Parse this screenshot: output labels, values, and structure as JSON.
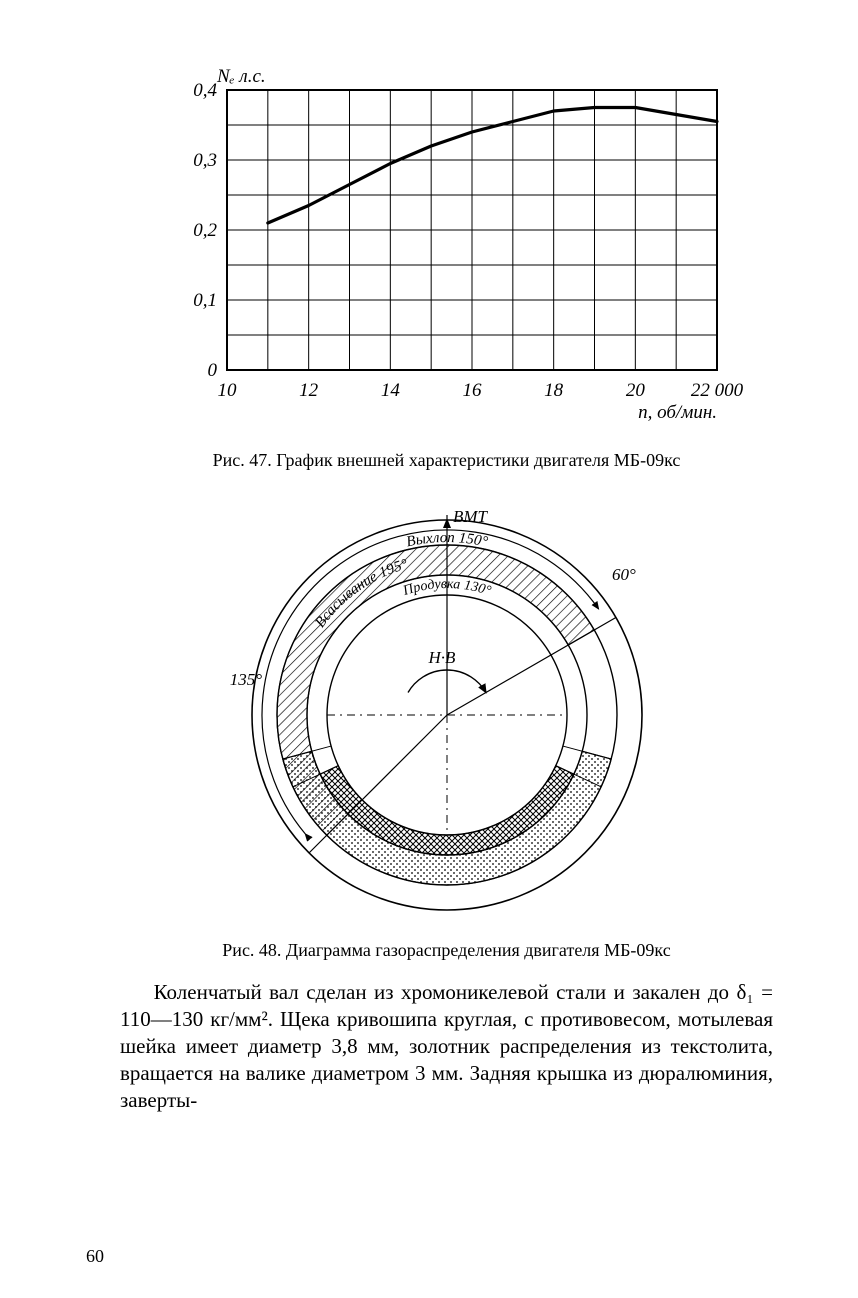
{
  "chart47": {
    "type": "line",
    "y_axis_label": "Nₑ л.с.",
    "x_axis_label": "n, об/мин.",
    "y_ticks": [
      "0",
      "0,1",
      "0,2",
      "0,3",
      "0,4"
    ],
    "x_ticks": [
      "10",
      "12",
      "14",
      "16",
      "18",
      "20",
      "22 000"
    ],
    "xlim": [
      10,
      22
    ],
    "ylim": [
      0,
      0.4
    ],
    "curve": [
      [
        11,
        0.21
      ],
      [
        12,
        0.235
      ],
      [
        13,
        0.265
      ],
      [
        14,
        0.295
      ],
      [
        15,
        0.32
      ],
      [
        16,
        0.34
      ],
      [
        17,
        0.355
      ],
      [
        18,
        0.37
      ],
      [
        19,
        0.375
      ],
      [
        20,
        0.375
      ],
      [
        21,
        0.365
      ],
      [
        22,
        0.355
      ]
    ],
    "axis_color": "#000000",
    "grid_color": "#000000",
    "curve_color": "#000000",
    "curve_width": 3.2,
    "grid_width": 1,
    "axis_width": 2,
    "tick_fontsize": 19,
    "label_fontsize": 19
  },
  "caption47": "Рис. 47. График внешней характеристики двигателя МБ-09кс",
  "diagram48": {
    "type": "timing-circle",
    "top_label": "ВМТ",
    "center_label": "Н·В",
    "outer_left_angle_label": "135°",
    "outer_right_angle_label": "60°",
    "arc_labels": {
      "intake": "Всасывание 195°",
      "purge": "Продувка 130°",
      "exhaust": "Выхлоп 150°"
    },
    "colors": {
      "outline": "#000000",
      "hatch": "#000000",
      "cross_hatch": "#000000",
      "dot_fill": "#000000",
      "background": "#ffffff"
    },
    "hatch_opacity": 0.9,
    "line_width": 1.4,
    "label_fontsize": 17
  },
  "caption48": "Рис. 48. Диаграмма газораспределения двигателя МБ-09кс",
  "body_paragraph": "Коленчатый вал сделан из хромоникелевой стали и закален до δ₁ = 110—130 кг/мм². Щека кривошипа круглая, с противовесом, мотылевая шейка имеет диаметр 3,8 мм, золотник распределения из текстолита, вращается на валике диаметром 3 мм. Задняя крышка из дюралюминия, заверты-",
  "page_number": "60"
}
